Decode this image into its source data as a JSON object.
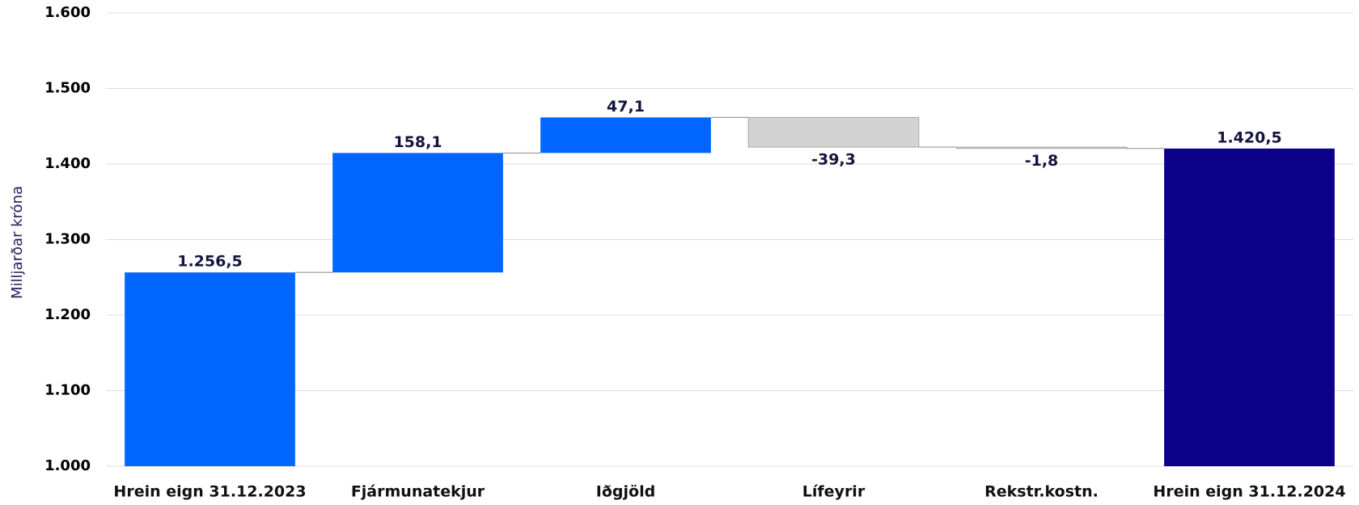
{
  "chart_data": {
    "type": "waterfall",
    "y_label": "Milljarðar króna",
    "categories": [
      "Hrein eign 31.12.2023",
      "Fjármunatekjur",
      "Iðgjöld",
      "Lífeyrir",
      "Rekstr.kostn.",
      "Hrein eign 31.12.2024"
    ],
    "values": [
      1256.5,
      158.1,
      47.1,
      -39.3,
      -1.8,
      1420.5
    ],
    "value_labels": [
      "1.256,5",
      "158,1",
      "47,1",
      "-39,3",
      "-1,8",
      "1.420,5"
    ],
    "measure": [
      "absolute",
      "relative",
      "relative",
      "relative",
      "relative",
      "absolute"
    ],
    "colors": [
      "#0066ff",
      "#0066ff",
      "#0066ff",
      "#d3d3d3",
      "#d3d3d3",
      "#0c0088"
    ],
    "ylim": [
      1000,
      1600
    ],
    "yticks": [
      {
        "value": 1000,
        "label": "1.000"
      },
      {
        "value": 1100,
        "label": "1.100"
      },
      {
        "value": 1200,
        "label": "1.200"
      },
      {
        "value": 1300,
        "label": "1.300"
      },
      {
        "value": 1400,
        "label": "1.400"
      },
      {
        "value": 1500,
        "label": "1.500"
      },
      {
        "value": 1600,
        "label": "1.600"
      }
    ],
    "grid": true
  }
}
